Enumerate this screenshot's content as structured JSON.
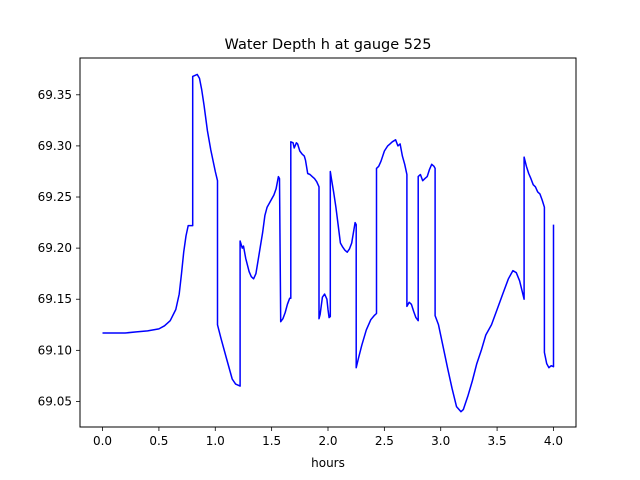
{
  "chart_data": {
    "type": "line",
    "title": "Water Depth h at gauge 525",
    "xlabel": "hours",
    "ylabel": "",
    "xlim": [
      -0.2,
      4.2
    ],
    "ylim": [
      69.025,
      69.386
    ],
    "xticks": [
      0.0,
      0.5,
      1.0,
      1.5,
      2.0,
      2.5,
      3.0,
      3.5,
      4.0
    ],
    "xtick_labels": [
      "0.0",
      "0.5",
      "1.0",
      "1.5",
      "2.0",
      "2.5",
      "3.0",
      "3.5",
      "4.0"
    ],
    "yticks": [
      69.05,
      69.1,
      69.15,
      69.2,
      69.25,
      69.3,
      69.35
    ],
    "ytick_labels": [
      "69.05",
      "69.10",
      "69.15",
      "69.20",
      "69.25",
      "69.30",
      "69.35"
    ],
    "grid": false,
    "legend": "none",
    "series": [
      {
        "color": "#0000ff",
        "x": [
          0.0,
          0.1,
          0.2,
          0.3,
          0.4,
          0.5,
          0.55,
          0.6,
          0.65,
          0.68,
          0.7,
          0.72,
          0.74,
          0.76,
          0.78,
          0.8,
          0.8,
          0.82,
          0.84,
          0.86,
          0.88,
          0.9,
          0.93,
          0.96,
          1.0,
          1.02,
          1.02,
          1.05,
          1.1,
          1.15,
          1.18,
          1.22,
          1.22,
          1.24,
          1.25,
          1.27,
          1.3,
          1.32,
          1.34,
          1.36,
          1.38,
          1.4,
          1.42,
          1.44,
          1.46,
          1.48,
          1.5,
          1.52,
          1.54,
          1.56,
          1.57,
          1.58,
          1.58,
          1.6,
          1.62,
          1.64,
          1.66,
          1.67,
          1.67,
          1.69,
          1.7,
          1.72,
          1.73,
          1.75,
          1.77,
          1.79,
          1.8,
          1.82,
          1.84,
          1.86,
          1.88,
          1.9,
          1.92,
          1.92,
          1.93,
          1.95,
          1.97,
          1.99,
          2.0,
          2.01,
          2.02,
          2.02,
          2.03,
          2.05,
          2.07,
          2.09,
          2.11,
          2.13,
          2.15,
          2.17,
          2.19,
          2.21,
          2.23,
          2.24,
          2.25,
          2.25,
          2.27,
          2.3,
          2.34,
          2.38,
          2.41,
          2.43,
          2.43,
          2.45,
          2.47,
          2.5,
          2.53,
          2.55,
          2.57,
          2.6,
          2.62,
          2.64,
          2.66,
          2.68,
          2.7,
          2.7,
          2.72,
          2.74,
          2.76,
          2.78,
          2.8,
          2.8,
          2.82,
          2.84,
          2.86,
          2.88,
          2.9,
          2.92,
          2.94,
          2.95,
          2.95,
          2.98,
          3.02,
          3.06,
          3.1,
          3.14,
          3.18,
          3.2,
          3.24,
          3.28,
          3.32,
          3.36,
          3.4,
          3.45,
          3.5,
          3.55,
          3.6,
          3.64,
          3.67,
          3.7,
          3.74,
          3.74,
          3.76,
          3.78,
          3.8,
          3.82,
          3.84,
          3.86,
          3.88,
          3.9,
          3.92,
          3.92,
          3.94,
          3.96,
          3.98,
          4.0,
          4.0
        ],
        "y": [
          69.117,
          69.117,
          69.117,
          69.118,
          69.119,
          69.121,
          69.124,
          69.129,
          69.14,
          69.155,
          69.175,
          69.196,
          69.212,
          69.222,
          69.222,
          69.222,
          69.368,
          69.369,
          69.37,
          69.366,
          69.355,
          69.34,
          69.315,
          69.296,
          69.275,
          69.266,
          69.125,
          69.112,
          69.092,
          69.072,
          69.067,
          69.065,
          69.207,
          69.2,
          69.202,
          69.19,
          69.177,
          69.172,
          69.17,
          69.175,
          69.188,
          69.202,
          69.215,
          69.232,
          69.24,
          69.244,
          69.248,
          69.252,
          69.258,
          69.27,
          69.268,
          69.128,
          69.128,
          69.131,
          69.137,
          69.145,
          69.151,
          69.151,
          69.304,
          69.303,
          69.298,
          69.303,
          69.302,
          69.295,
          69.292,
          69.29,
          69.286,
          69.273,
          69.272,
          69.27,
          69.268,
          69.265,
          69.26,
          69.131,
          69.135,
          69.152,
          69.155,
          69.15,
          69.14,
          69.132,
          69.133,
          69.275,
          69.268,
          69.255,
          69.24,
          69.223,
          69.205,
          69.201,
          69.198,
          69.196,
          69.199,
          69.205,
          69.218,
          69.225,
          69.223,
          69.083,
          69.092,
          69.105,
          69.12,
          69.13,
          69.134,
          69.136,
          69.278,
          69.28,
          69.285,
          69.295,
          69.3,
          69.302,
          69.304,
          69.306,
          69.3,
          69.302,
          69.29,
          69.282,
          69.272,
          69.143,
          69.147,
          69.145,
          69.138,
          69.132,
          69.129,
          69.27,
          69.272,
          69.266,
          69.268,
          69.27,
          69.277,
          69.282,
          69.28,
          69.278,
          69.134,
          69.125,
          69.104,
          69.083,
          69.063,
          69.045,
          69.04,
          69.042,
          69.055,
          69.07,
          69.087,
          69.1,
          69.115,
          69.125,
          69.14,
          69.155,
          69.17,
          69.178,
          69.176,
          69.168,
          69.15,
          69.289,
          69.28,
          69.273,
          69.268,
          69.262,
          69.26,
          69.255,
          69.253,
          69.247,
          69.24,
          69.098,
          69.087,
          69.083,
          69.085,
          69.084,
          69.223
        ]
      }
    ]
  }
}
